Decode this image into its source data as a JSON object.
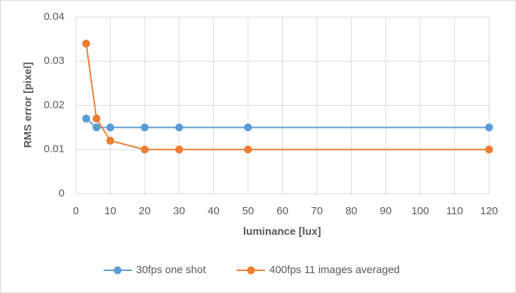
{
  "chart_data": {
    "type": "line",
    "x": [
      3,
      6,
      10,
      20,
      30,
      50,
      120
    ],
    "series": [
      {
        "name": "30fps one shot",
        "color": "#5b9bd5",
        "values": [
          0.017,
          0.015,
          0.015,
          0.015,
          0.015,
          0.015,
          0.015
        ]
      },
      {
        "name": "400fps 11 images averaged",
        "color": "#ed7d31",
        "values": [
          0.034,
          0.017,
          0.012,
          0.01,
          0.01,
          0.01,
          0.01
        ]
      }
    ],
    "xlabel": "luminance [lux]",
    "ylabel": "RMS error [pixel]",
    "xlim": [
      0,
      120
    ],
    "xticks": [
      0,
      10,
      20,
      30,
      40,
      50,
      60,
      70,
      80,
      90,
      100,
      110,
      120
    ],
    "ylim": [
      0,
      0.04
    ],
    "yticks": [
      0,
      0.01,
      0.02,
      0.03,
      0.04
    ],
    "grid": true,
    "legend": "bottom"
  }
}
